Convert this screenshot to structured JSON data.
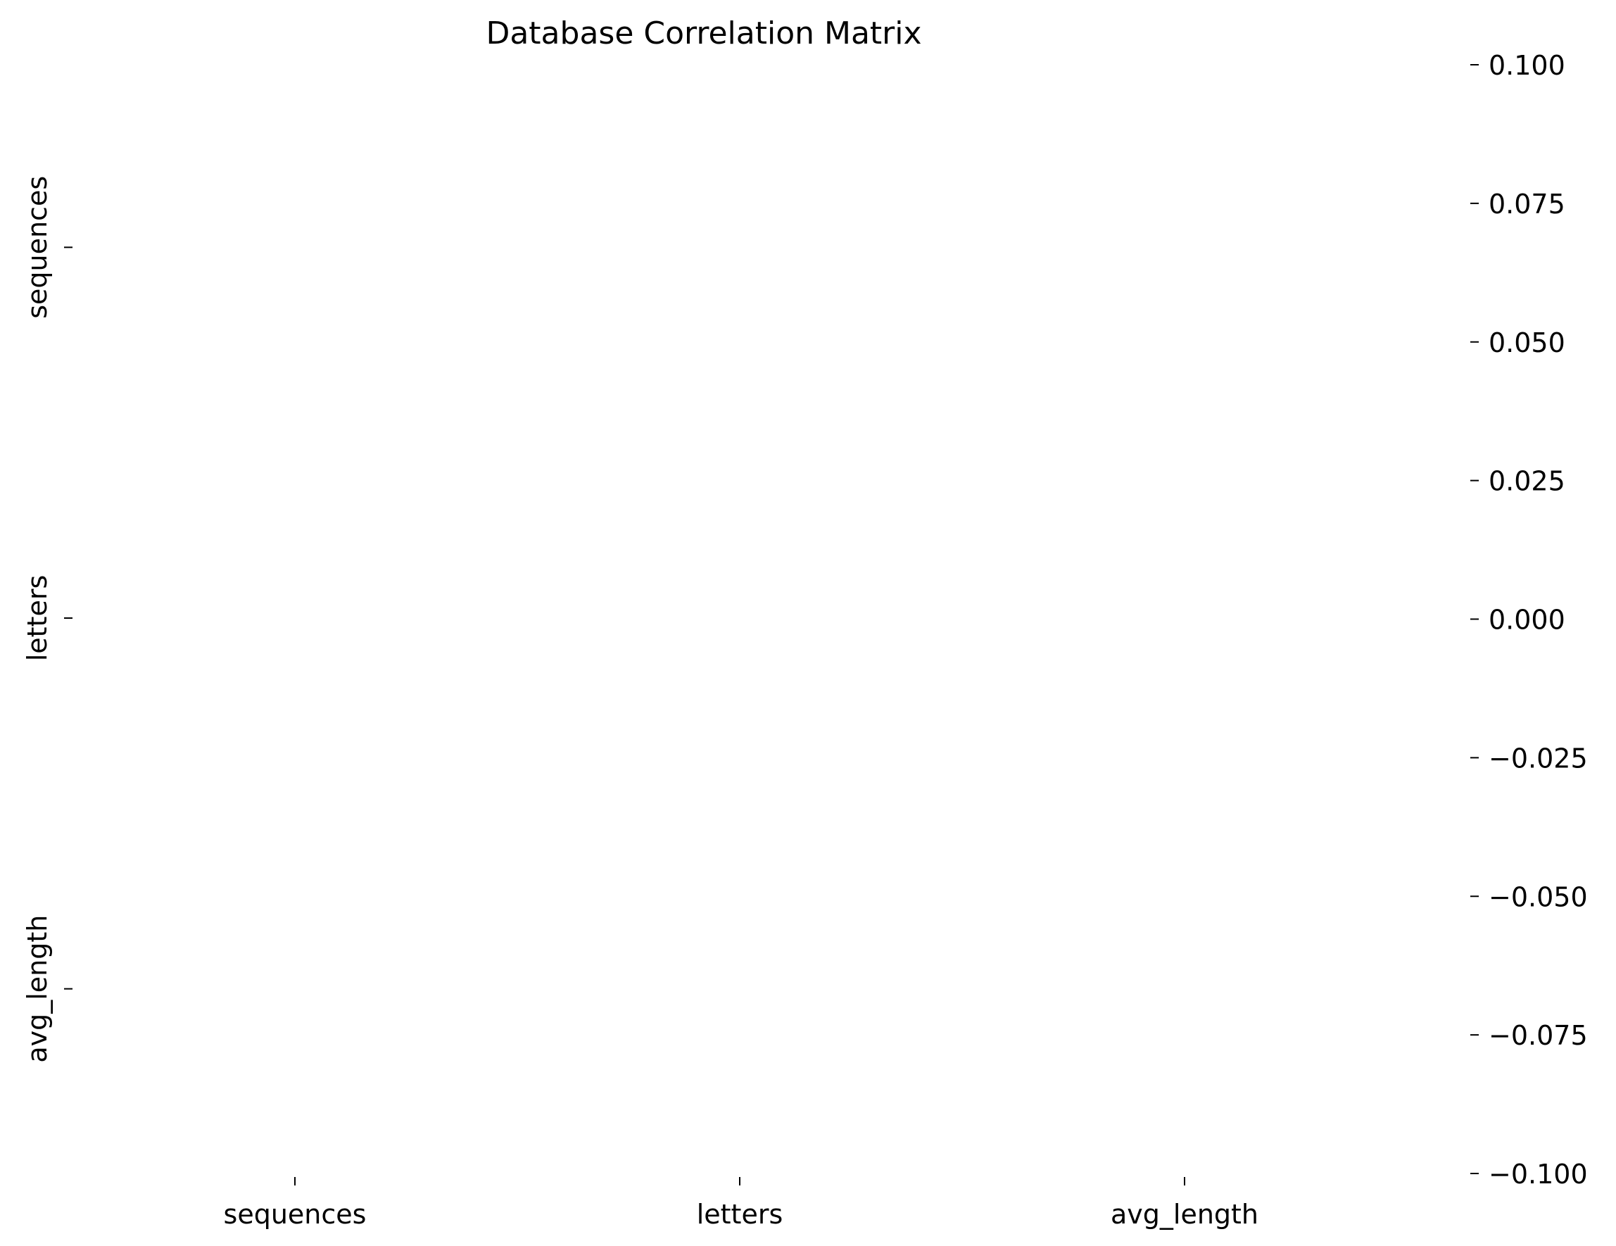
{
  "chart_data": {
    "type": "heatmap",
    "title": "Database Correlation Matrix",
    "rows": [
      "sequences",
      "letters",
      "avg_length"
    ],
    "columns": [
      "sequences",
      "letters",
      "avg_length"
    ],
    "values": [
      [
        null,
        null,
        null
      ],
      [
        null,
        null,
        null
      ],
      [
        null,
        null,
        null
      ]
    ],
    "colorbar": {
      "min": -0.1,
      "max": 0.1,
      "ticks": [
        0.1,
        0.075,
        0.05,
        0.025,
        0.0,
        -0.025,
        -0.05,
        -0.075,
        -0.1
      ],
      "tick_labels": [
        "0.100",
        "0.075",
        "0.050",
        "0.025",
        "0.000",
        "−0.025",
        "−0.050",
        "−0.075",
        "−0.100"
      ]
    },
    "grid": false,
    "xlabel": "",
    "ylabel": ""
  }
}
